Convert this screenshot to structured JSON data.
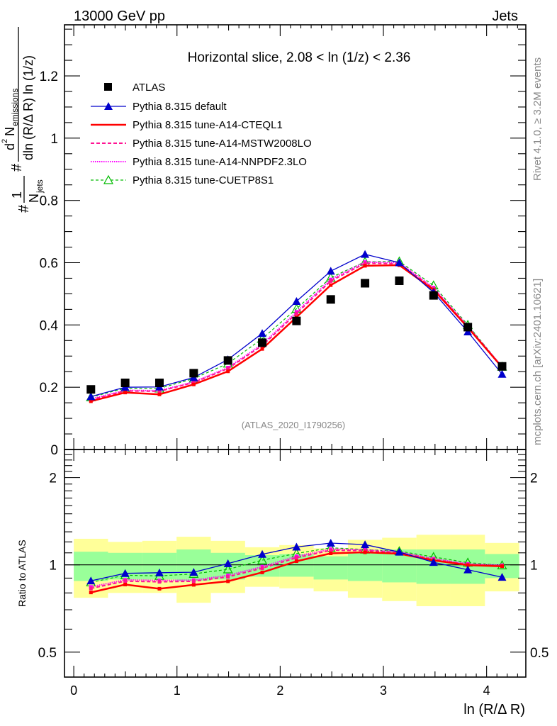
{
  "header": {
    "left": "13000 GeV pp",
    "right": "Jets"
  },
  "side_labels": {
    "rivet": "Rivet 4.1.0, ≥ 3.2M events",
    "mcplots": "mcplots.cern.ch [arXiv:2401.10621]"
  },
  "chart_data": {
    "type": "line",
    "title": "Horizontal slice, 2.08 < ln (1/z) < 2.36",
    "watermark": "(ATLAS_2020_I1790256)",
    "xlabel": "ln (R/Δ R)",
    "ylabel_main": "1/N_jets d²N_emissions / dln (R/Δ R) ln (1/z)",
    "ylabel_ratio": "Ratio to ATLAS",
    "xlim": [
      -0.09,
      4.38
    ],
    "ylim_main": [
      0,
      1.364
    ],
    "ylim_ratio": [
      0.41,
      2.5
    ],
    "ratio_scale": "log",
    "xticks": [
      "0",
      "1",
      "2",
      "3",
      "4"
    ],
    "yticks_main": [
      "0",
      "0.2",
      "0.4",
      "0.6",
      "0.8",
      "1",
      "1.2"
    ],
    "yticks_ratio": [
      "0.5",
      "1",
      "2"
    ],
    "legend_position": "top-left",
    "x": [
      0.166,
      0.498,
      0.83,
      1.162,
      1.494,
      1.826,
      2.158,
      2.49,
      2.822,
      3.154,
      3.486,
      3.818,
      4.15
    ],
    "bin_edges": [
      0,
      0.332,
      0.664,
      0.996,
      1.328,
      1.66,
      1.992,
      2.324,
      2.656,
      2.988,
      3.32,
      3.652,
      3.984,
      4.316
    ],
    "data": {
      "name": "ATLAS",
      "values": [
        0.193,
        0.214,
        0.214,
        0.245,
        0.286,
        0.343,
        0.413,
        0.482,
        0.534,
        0.542,
        0.495,
        0.393,
        0.267
      ]
    },
    "series": [
      {
        "name": "Pythia 8.315 default",
        "color": "#0000cc",
        "style": "solid-triangle",
        "values": [
          0.17,
          0.2,
          0.201,
          0.231,
          0.289,
          0.373,
          0.476,
          0.573,
          0.627,
          0.6,
          0.505,
          0.378,
          0.242
        ]
      },
      {
        "name": "Pythia 8.315 tune-A14-CTEQL1",
        "color": "#ff0000",
        "style": "solid-thick",
        "values": [
          0.155,
          0.183,
          0.177,
          0.209,
          0.251,
          0.323,
          0.425,
          0.528,
          0.59,
          0.592,
          0.513,
          0.392,
          0.264
        ]
      },
      {
        "name": "Pythia 8.315 tune-A14-MSTW2008LO",
        "color": "#ff1493",
        "style": "dashed",
        "values": [
          0.16,
          0.188,
          0.187,
          0.215,
          0.26,
          0.334,
          0.437,
          0.541,
          0.598,
          0.597,
          0.517,
          0.394,
          0.265
        ]
      },
      {
        "name": "Pythia 8.315 tune-A14-NNPDF2.3LO",
        "color": "#ff00ff",
        "style": "dotted",
        "values": [
          0.162,
          0.19,
          0.189,
          0.217,
          0.263,
          0.338,
          0.442,
          0.546,
          0.602,
          0.6,
          0.52,
          0.396,
          0.266
        ]
      },
      {
        "name": "Pythia 8.315 tune-CUETP8S1",
        "color": "#00bb00",
        "style": "dashed-open-triangle",
        "values": [
          0.168,
          0.197,
          0.196,
          0.228,
          0.276,
          0.356,
          0.452,
          0.552,
          0.603,
          0.604,
          0.527,
          0.4,
          0.266
        ]
      }
    ],
    "bands": {
      "yellow_color": "#ffff99",
      "green_color": "#99ff99",
      "yellow_up": [
        1.23,
        1.2,
        1.21,
        1.25,
        1.21,
        1.15,
        1.17,
        1.14,
        1.22,
        1.24,
        1.27,
        1.27,
        1.19
      ],
      "yellow_down": [
        0.77,
        0.8,
        0.8,
        0.74,
        0.8,
        0.84,
        0.83,
        0.81,
        0.77,
        0.75,
        0.72,
        0.72,
        0.81
      ],
      "green_up": [
        1.11,
        1.1,
        1.1,
        1.13,
        1.1,
        1.08,
        1.09,
        1.07,
        1.1,
        1.13,
        1.13,
        1.13,
        1.09
      ],
      "green_down": [
        0.88,
        0.89,
        0.89,
        0.88,
        0.89,
        0.91,
        0.91,
        0.89,
        0.88,
        0.87,
        0.86,
        0.86,
        0.9
      ]
    }
  }
}
